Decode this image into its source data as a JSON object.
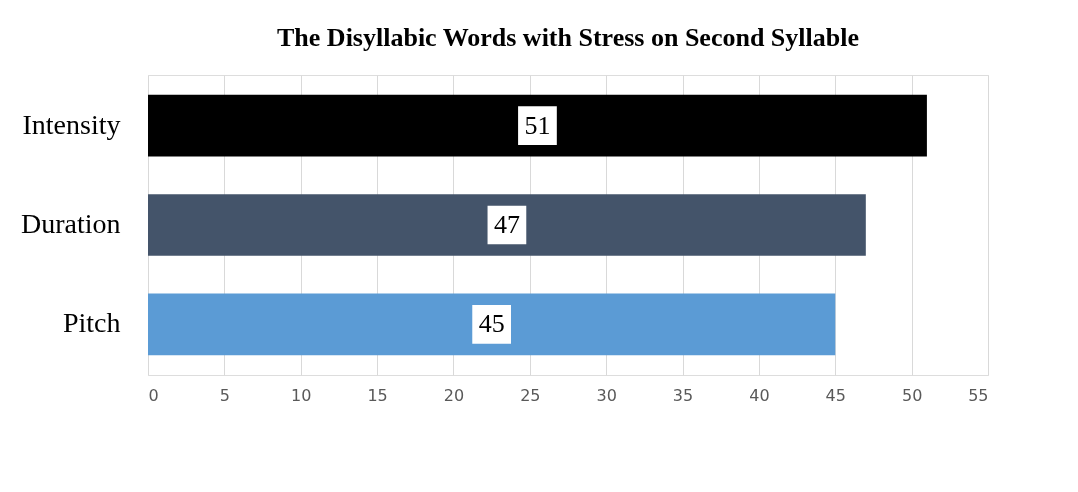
{
  "chart_data": {
    "type": "bar",
    "orientation": "horizontal",
    "title": "The Disyllabic Words with Stress on Second Syllable",
    "categories": [
      "Intensity",
      "Duration",
      "Pitch"
    ],
    "values": [
      51,
      47,
      45
    ],
    "colors": [
      "#000000",
      "#44546a",
      "#5b9bd5"
    ],
    "xlim": [
      0,
      55
    ],
    "xticks": [
      0,
      5,
      10,
      15,
      20,
      25,
      30,
      35,
      40,
      45,
      50,
      55
    ],
    "grid": "x",
    "data_labels": true
  }
}
